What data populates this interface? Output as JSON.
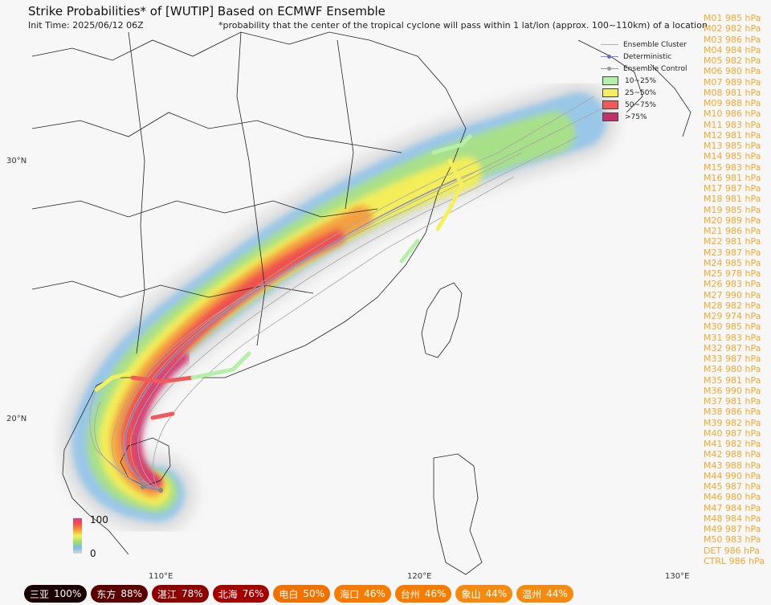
{
  "title": "Strike Probabilities* of [WUTIP] Based on ECMWF Ensemble",
  "init_time": "Init Time: 2025/06/12 06Z",
  "footnote": "*probability that the center of the tropical cyclone will pass within 1 lat/lon (approx. 100~110km) of a location",
  "lat_labels": [
    "30°N",
    "20°N"
  ],
  "lon_labels": [
    "110°E",
    "120°E",
    "130°E"
  ],
  "legend": {
    "lines": [
      "Ensemble Cluster",
      "Deterministic",
      "Ensemble Control"
    ],
    "bins": [
      {
        "label": "10~25%",
        "color": "#b6f0a8"
      },
      {
        "label": "25~50%",
        "color": "#f3f060"
      },
      {
        "label": "50~75%",
        "color": "#f05a5a"
      },
      {
        "label": ">75%",
        "color": "#c2306a"
      }
    ]
  },
  "colorbar": {
    "max": "100",
    "min": "0"
  },
  "members": [
    "M01 985 hPa",
    "M02 982 hPa",
    "M03 986 hPa",
    "M04 984 hPa",
    "M05 982 hPa",
    "M06 980 hPa",
    "M07 989 hPa",
    "M08 981 hPa",
    "M09 988 hPa",
    "M10 986 hPa",
    "M11 983 hPa",
    "M12 981 hPa",
    "M13 985 hPa",
    "M14 985 hPa",
    "M15 983 hPa",
    "M16 981 hPa",
    "M17 987 hPa",
    "M18 981 hPa",
    "M19 985 hPa",
    "M20 989 hPa",
    "M21 986 hPa",
    "M22 981 hPa",
    "M23 987 hPa",
    "M24 985 hPa",
    "M25 978 hPa",
    "M26 983 hPa",
    "M27 990 hPa",
    "M28 982 hPa",
    "M29 974 hPa",
    "M30 985 hPa",
    "M31 983 hPa",
    "M32 987 hPa",
    "M33 987 hPa",
    "M34 980 hPa",
    "M35 981 hPa",
    "M36 990 hPa",
    "M37 981 hPa",
    "M38 986 hPa",
    "M39 982 hPa",
    "M40 987 hPa",
    "M41 982 hPa",
    "M42 988 hPa",
    "M43 988 hPa",
    "M44 990 hPa",
    "M45 987 hPa",
    "M46 980 hPa",
    "M47 984 hPa",
    "M48 984 hPa",
    "M49 987 hPa",
    "M50 983 hPa",
    "DET 986 hPa",
    "CTRL 986 hPa"
  ],
  "cities": [
    {
      "name": "三亚",
      "prob": "100%",
      "color": "#1a0000"
    },
    {
      "name": "东方",
      "prob": "88%",
      "color": "#5a0000"
    },
    {
      "name": "湛江",
      "prob": "78%",
      "color": "#8c0000"
    },
    {
      "name": "北海",
      "prob": "76%",
      "color": "#a50000"
    },
    {
      "name": "电白",
      "prob": "50%",
      "color": "#f07000"
    },
    {
      "name": "海口",
      "prob": "46%",
      "color": "#f57c00"
    },
    {
      "name": "台州",
      "prob": "46%",
      "color": "#f57c00"
    },
    {
      "name": "象山",
      "prob": "44%",
      "color": "#f58a10"
    },
    {
      "name": "温州",
      "prob": "44%",
      "color": "#f58a10"
    }
  ]
}
